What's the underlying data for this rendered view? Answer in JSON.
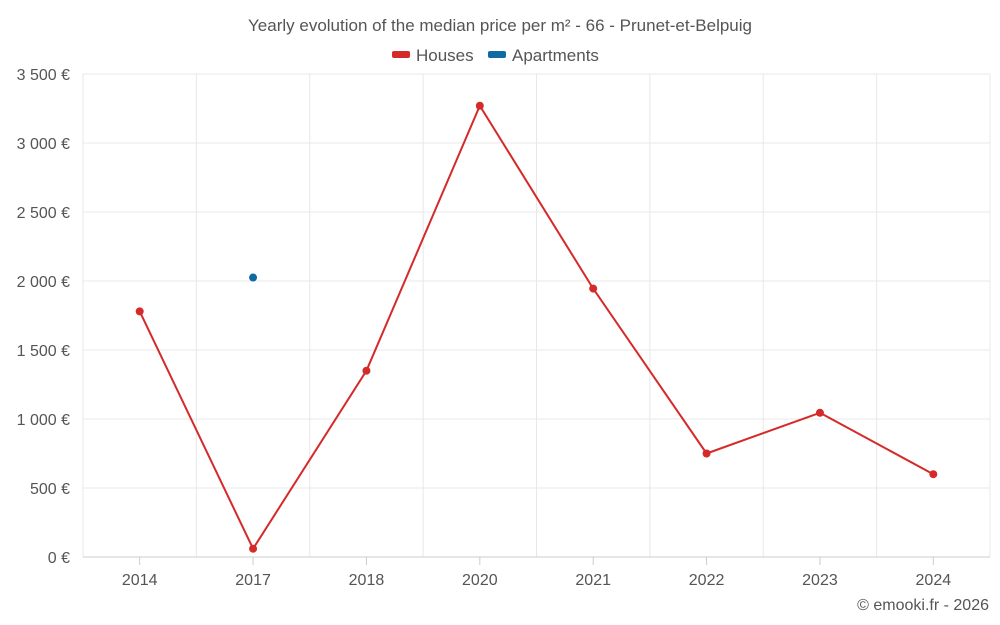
{
  "chart_data": {
    "type": "line",
    "title": "Yearly evolution of the median price per m² - 66 - Prunet-et-Belpuig",
    "categories": [
      "2014",
      "2017",
      "2018",
      "2020",
      "2021",
      "2022",
      "2023",
      "2024"
    ],
    "series": [
      {
        "name": "Houses",
        "color": "#d42a2a",
        "values": [
          1780,
          60,
          1350,
          3270,
          1945,
          750,
          1045,
          600
        ]
      },
      {
        "name": "Apartments",
        "color": "#0f6aa3",
        "values": [
          null,
          2025,
          null,
          null,
          null,
          null,
          null,
          null
        ]
      }
    ],
    "ylim": [
      0,
      3500
    ],
    "yticks": [
      0,
      500,
      1000,
      1500,
      2000,
      2500,
      3000,
      3500
    ],
    "ytick_labels": [
      "0 €",
      "500 €",
      "1 000 €",
      "1 500 €",
      "2 000 €",
      "2 500 €",
      "3 000 €",
      "3 500 €"
    ],
    "xlabel": "",
    "ylabel": "",
    "legend_position": "top-center",
    "grid": true
  },
  "credit": "© emooki.fr - 2026"
}
